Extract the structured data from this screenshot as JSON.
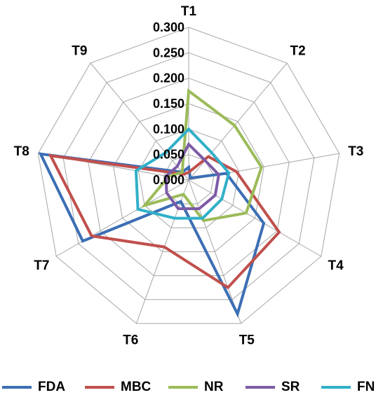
{
  "chart_data": {
    "type": "radar",
    "categories": [
      "T1",
      "T2",
      "T3",
      "T4",
      "T5",
      "T6",
      "T7",
      "T8",
      "T9"
    ],
    "tick_labels": [
      "0.000",
      "0.050",
      "0.100",
      "0.150",
      "0.200",
      "0.250",
      "0.300"
    ],
    "rlim": [
      0,
      0.3
    ],
    "legend_position": "bottom",
    "grid": true,
    "series": [
      {
        "name": "FDA",
        "color": "#3c6eb4",
        "values": [
          0.025,
          0.005,
          0.075,
          0.17,
          0.28,
          0.045,
          0.24,
          0.295,
          0.02
        ]
      },
      {
        "name": "MBC",
        "color": "#c0504d",
        "values": [
          0.015,
          0.06,
          0.095,
          0.205,
          0.225,
          0.14,
          0.22,
          0.275,
          0.015
        ]
      },
      {
        "name": "NR",
        "color": "#9bbb59",
        "values": [
          0.175,
          0.14,
          0.145,
          0.13,
          0.085,
          0.03,
          0.1,
          0.04,
          0.02
        ]
      },
      {
        "name": "SR",
        "color": "#7d5ba6",
        "values": [
          0.07,
          0.05,
          0.06,
          0.06,
          0.06,
          0.06,
          0.05,
          0.045,
          0.035
        ]
      },
      {
        "name": "FN",
        "color": "#31b0c8",
        "values": [
          0.1,
          0.07,
          0.08,
          0.075,
          0.08,
          0.08,
          0.115,
          0.105,
          0.07
        ]
      }
    ]
  }
}
